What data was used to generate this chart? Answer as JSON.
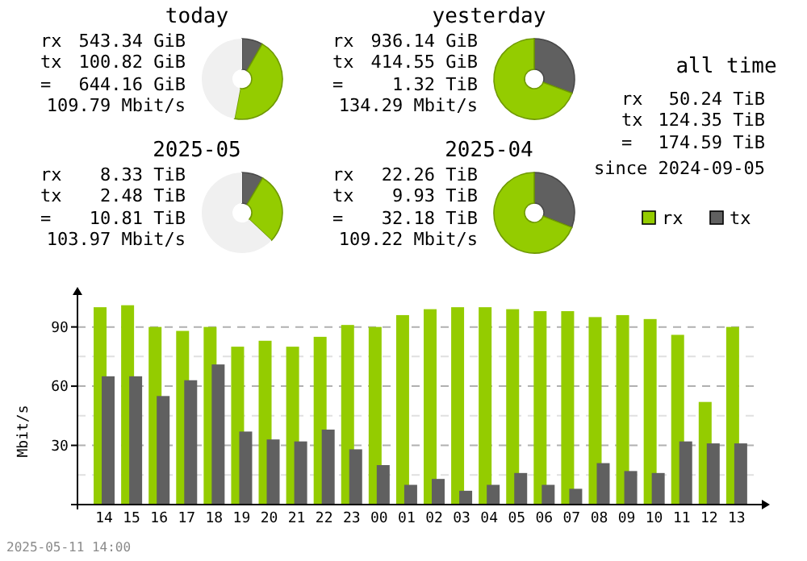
{
  "chart_data": [
    {
      "type": "donut",
      "title": "today",
      "categories": [
        null,
        null,
        null
      ],
      "values": [
        8.3,
        44.7,
        47
      ],
      "colors": [
        "#606060",
        "#94cc00",
        "#f0f0f0"
      ],
      "annotations": [
        "rx",
        "543.34 GiB",
        "tx",
        "100.82 GiB",
        "=",
        "644.16 GiB",
        "109.79 Mbit/s"
      ]
    },
    {
      "type": "donut",
      "title": "yesterday",
      "categories": [
        null,
        null
      ],
      "values": [
        30.7,
        69.3
      ],
      "colors": [
        "#606060",
        "#94cc00"
      ],
      "annotations": [
        "rx",
        "936.14 GiB",
        "tx",
        "414.55 GiB",
        "=",
        "1.32 TiB",
        "134.29 Mbit/s"
      ]
    },
    {
      "type": "donut",
      "title": "2025-05",
      "categories": [
        null,
        null,
        null
      ],
      "values": [
        8.5,
        28.5,
        63
      ],
      "colors": [
        "#606060",
        "#94cc00",
        "#f0f0f0"
      ],
      "annotations": [
        "rx",
        "8.33 TiB",
        "tx",
        "2.48 TiB",
        "=",
        "10.81 TiB",
        "103.97 Mbit/s"
      ]
    },
    {
      "type": "donut",
      "title": "2025-04",
      "categories": [
        null,
        null
      ],
      "values": [
        30.9,
        69.1
      ],
      "colors": [
        "#606060",
        "#94cc00"
      ],
      "annotations": [
        "rx",
        "22.26 TiB",
        "tx",
        "9.93 TiB",
        "=",
        "32.18 TiB",
        "109.22 Mbit/s"
      ]
    },
    {
      "type": "other",
      "title": "all time",
      "annotations": [
        "rx",
        "50.24 TiB",
        "tx",
        "124.35 TiB",
        "=",
        "174.59 TiB",
        "since 2024-09-05"
      ]
    },
    {
      "type": "bar",
      "ylabel": "Mbit/s",
      "categories": [
        "14",
        "15",
        "16",
        "17",
        "18",
        "19",
        "20",
        "21",
        "22",
        "23",
        "00",
        "01",
        "02",
        "03",
        "04",
        "05",
        "06",
        "07",
        "08",
        "09",
        "10",
        "11",
        "12",
        "13"
      ],
      "series": [
        {
          "name": "rx",
          "color": "#94cc00",
          "values": [
            100,
            101,
            90,
            88,
            90,
            80,
            83,
            80,
            85,
            91,
            90,
            96,
            99,
            100,
            100,
            99,
            98,
            98,
            95,
            96,
            94,
            86,
            52,
            90
          ]
        },
        {
          "name": "tx",
          "color": "#606060",
          "values": [
            65,
            65,
            55,
            63,
            71,
            37,
            33,
            32,
            38,
            28,
            20,
            10,
            13,
            7,
            10,
            16,
            10,
            8,
            21,
            17,
            16,
            32,
            31,
            31
          ]
        }
      ],
      "ylim": [
        0,
        107
      ],
      "yticks": [
        {
          "value": 15,
          "label": null
        },
        30,
        {
          "value": 45,
          "label": null
        },
        60,
        {
          "value": 75,
          "label": null
        },
        90
      ],
      "grid": true,
      "legend": "top right",
      "annotations": [
        "2025-05-11 14:00"
      ]
    }
  ]
}
